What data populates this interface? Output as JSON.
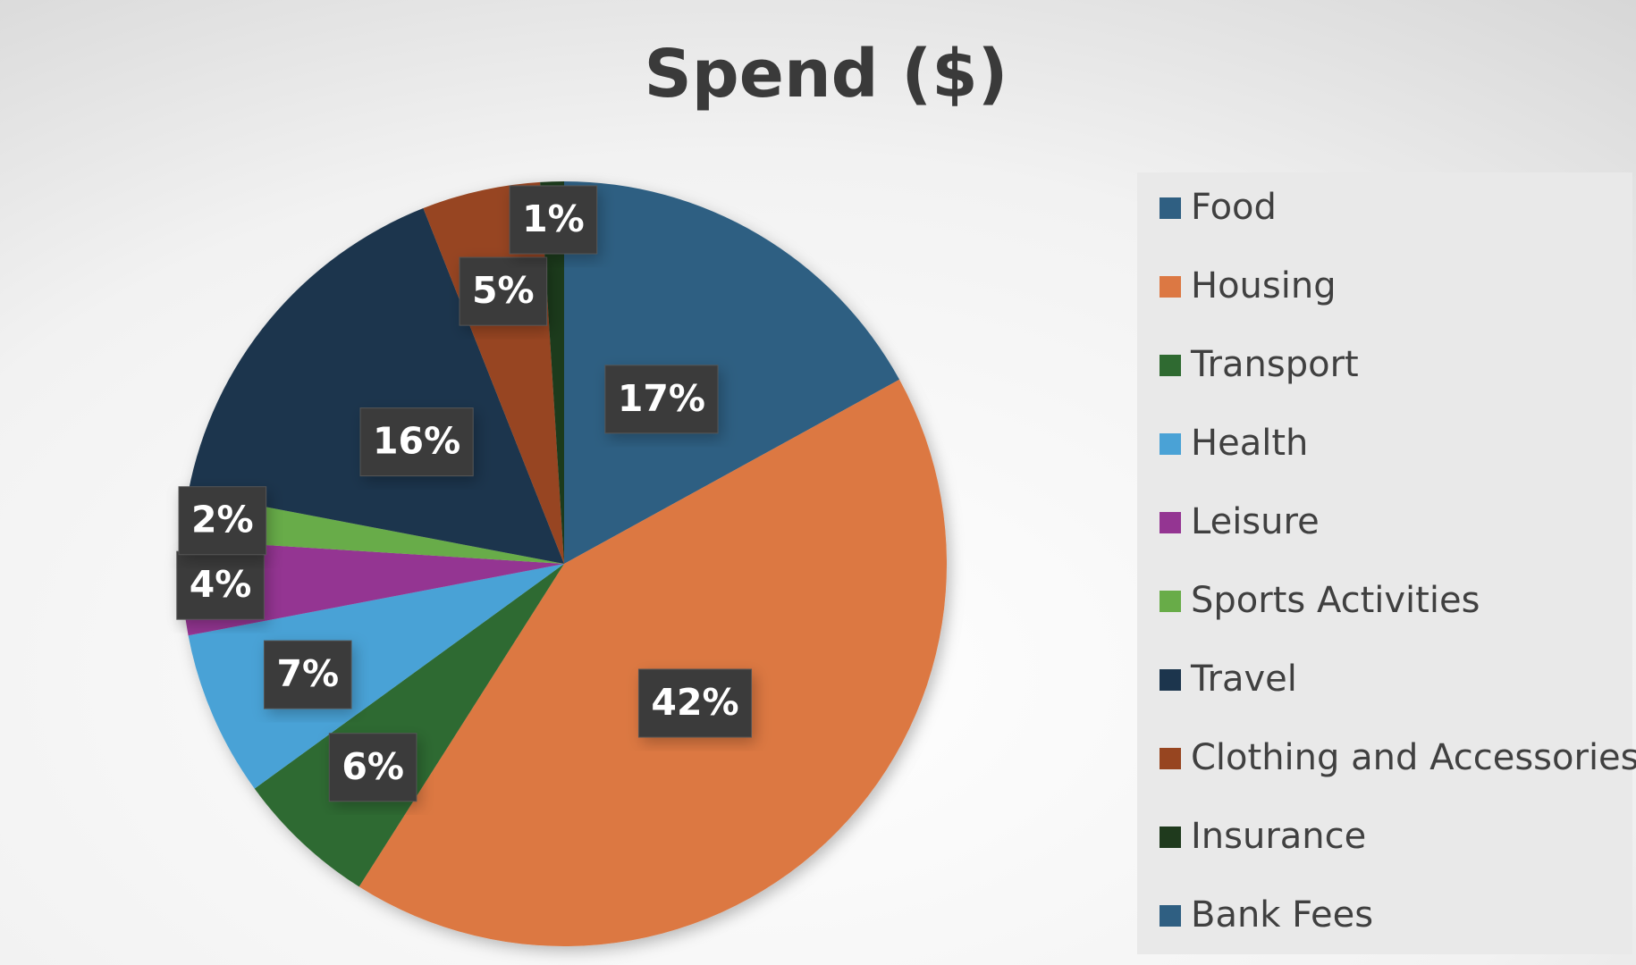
{
  "chart_data": {
    "type": "pie",
    "title": "Spend ($)",
    "categories": [
      "Food",
      "Housing",
      "Transport",
      "Health",
      "Leisure",
      "Sports Activities",
      "Travel",
      "Clothing and Accessories",
      "Insurance",
      "Bank Fees"
    ],
    "values": [
      17,
      42,
      6,
      7,
      4,
      2,
      16,
      5,
      1,
      0
    ],
    "value_labels": [
      "17%",
      "42%",
      "6%",
      "7%",
      "4%",
      "2%",
      "16%",
      "5%",
      "1%",
      null
    ],
    "colors": [
      "#2f5f82",
      "#dc7843",
      "#2f6a31",
      "#4aa2d6",
      "#943592",
      "#68ac48",
      "#1c354d",
      "#974520",
      "#1f3a1d",
      "#2f5f82"
    ],
    "legend": "right"
  }
}
